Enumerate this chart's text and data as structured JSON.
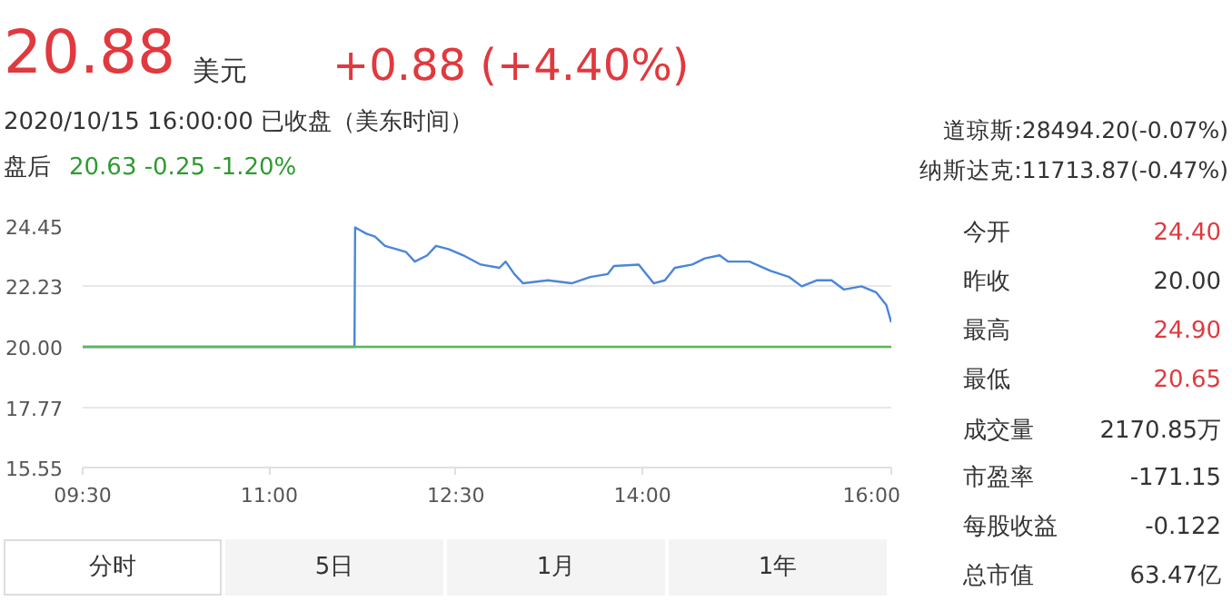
{
  "chart_data": {
    "type": "line",
    "x": [
      9.5,
      11.685,
      11.69,
      11.78,
      11.85,
      11.93,
      12.02,
      12.1,
      12.17,
      12.27,
      12.34,
      12.44,
      12.56,
      12.7,
      12.85,
      12.9,
      12.97,
      13.04,
      13.24,
      13.43,
      13.58,
      13.72,
      13.77,
      13.97,
      14.09,
      14.18,
      14.26,
      14.4,
      14.5,
      14.62,
      14.69,
      14.86,
      15.03,
      15.18,
      15.28,
      15.4,
      15.52,
      15.62,
      15.76,
      15.88,
      15.96,
      16.0
    ],
    "series": [
      {
        "color": "#4a86d8",
        "values": [
          20.0,
          20.0,
          24.4,
          24.17,
          24.06,
          23.72,
          23.6,
          23.49,
          23.14,
          23.37,
          23.72,
          23.6,
          23.37,
          23.03,
          22.91,
          23.14,
          22.68,
          22.34,
          22.45,
          22.34,
          22.57,
          22.68,
          22.98,
          23.03,
          22.34,
          22.45,
          22.91,
          23.03,
          23.26,
          23.37,
          23.14,
          23.14,
          22.8,
          22.57,
          22.23,
          22.45,
          22.45,
          22.11,
          22.23,
          22.0,
          21.54,
          20.9
        ]
      }
    ],
    "xlim": [
      9.5,
      16.0
    ],
    "xticks": [
      {
        "value": 9.5,
        "label": "09:30"
      },
      {
        "value": 11.0,
        "label": "11:00"
      },
      {
        "value": 12.5,
        "label": "12:30"
      },
      {
        "value": 14.0,
        "label": "14:00"
      },
      {
        "value": 16.0,
        "label": "16:00"
      }
    ],
    "ylim": [
      15.55,
      24.45
    ],
    "yticks": [
      15.55,
      17.77,
      {
        "value": 20.0,
        "label": "20.00"
      },
      22.23,
      24.45
    ],
    "grid": "y",
    "ref_lines": [
      {
        "axis": "y",
        "value": 20.0,
        "color": "#5cb85c"
      }
    ],
    "annotations": [
      "20.88",
      "美元",
      "+0.88 (+4.40%)",
      "2020/10/15 16:00:00  已收盘（美东时间）",
      "盘后",
      "20.63  -0.25  -1.20%",
      "道琼斯:28494.20(-0.07%)",
      "纳斯达克:11713.87(-0.47%)",
      "今开",
      "24.40",
      "昨收",
      "20.00",
      "最高",
      "24.90",
      "最低",
      "20.65",
      "成交量",
      "2170.85万",
      "市盈率",
      "-171.15",
      "每股收益",
      "-0.122",
      "总市值",
      "63.47亿",
      "分时",
      "5日",
      "1月",
      "1年"
    ]
  }
}
